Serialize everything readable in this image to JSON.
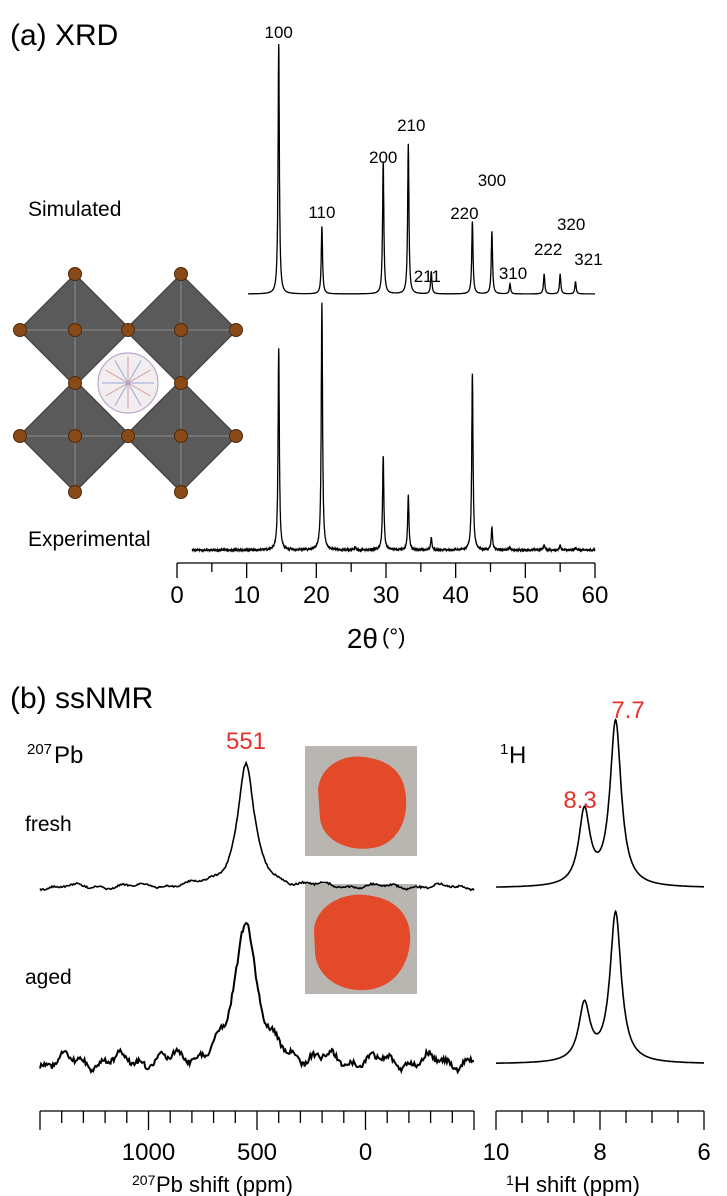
{
  "colors": {
    "trace": "#000000",
    "highlight": "#e8312a",
    "octahedron": "#5a5a5a",
    "atom": "#8a4a17",
    "powder": "#e24a2a",
    "powder_bg": "#b9b6b2"
  },
  "panel_a": {
    "label": "(a) XRD",
    "xlabel_main": "2θ",
    "xlabel_unit": "(°)",
    "xticks": [
      "0",
      "10",
      "20",
      "30",
      "40",
      "50",
      "60"
    ],
    "traces": [
      "Simulated",
      "Experimental"
    ],
    "illustration": "perovskite-octahedra-icon"
  },
  "panel_b": {
    "label": "(b) ssNMR",
    "pb_nucleus_sup": "207",
    "pb_nucleus": "Pb",
    "h_nucleus_sup": "1",
    "h_nucleus": "H",
    "samples": [
      "fresh",
      "aged"
    ],
    "pb_xticks": [
      "1000",
      "500",
      "0"
    ],
    "h_xticks": [
      "10",
      "8",
      "6"
    ],
    "pb_xlabel_sup": "207",
    "pb_xlabel": "Pb shift (ppm)",
    "h_xlabel_sup": "1",
    "h_xlabel": "H shift (ppm)",
    "pb_peak_label": "551",
    "h_peak_labels": [
      "8.3",
      "7.7"
    ]
  },
  "chart_data": [
    {
      "type": "line",
      "title": "(a) XRD",
      "xlabel": "2θ(°)",
      "xlim": [
        0,
        60
      ],
      "series": [
        {
          "name": "Simulated",
          "peaks": [
            {
              "hkl": "100",
              "x": 14.6,
              "y": 1.0
            },
            {
              "hkl": "110",
              "x": 20.8,
              "y": 0.27
            },
            {
              "hkl": "200",
              "x": 29.6,
              "y": 0.53
            },
            {
              "hkl": "210",
              "x": 33.2,
              "y": 0.6
            },
            {
              "hkl": "211",
              "x": 36.5,
              "y": 0.09
            },
            {
              "hkl": "220",
              "x": 42.4,
              "y": 0.29
            },
            {
              "hkl": "300",
              "x": 45.2,
              "y": 0.25
            },
            {
              "hkl": "310",
              "x": 47.8,
              "y": 0.04
            },
            {
              "hkl": "222",
              "x": 52.7,
              "y": 0.08
            },
            {
              "hkl": "320",
              "x": 55.0,
              "y": 0.08
            },
            {
              "hkl": "321",
              "x": 57.2,
              "y": 0.05
            }
          ]
        },
        {
          "name": "Experimental",
          "peaks": [
            {
              "x": 14.6,
              "y": 0.81
            },
            {
              "x": 20.8,
              "y": 1.0
            },
            {
              "x": 25.6,
              "y": 0.01
            },
            {
              "x": 29.6,
              "y": 0.38
            },
            {
              "x": 33.2,
              "y": 0.22
            },
            {
              "x": 36.5,
              "y": 0.05
            },
            {
              "x": 42.4,
              "y": 0.71
            },
            {
              "x": 45.2,
              "y": 0.09
            },
            {
              "x": 47.8,
              "y": 0.01
            },
            {
              "x": 52.7,
              "y": 0.02
            },
            {
              "x": 55.0,
              "y": 0.02
            },
            {
              "x": 57.2,
              "y": 0.01
            }
          ]
        }
      ]
    },
    {
      "type": "line",
      "title": "(b) ssNMR",
      "xlabel": "207Pb shift (ppm)",
      "xlim": [
        1500,
        -500
      ],
      "series": [
        {
          "name": "fresh",
          "peak_x": 551,
          "peak_height": 1.0,
          "width": 45
        },
        {
          "name": "aged",
          "peak_x": 551,
          "peak_height": 1.0,
          "width": 55
        }
      ]
    },
    {
      "type": "line",
      "xlabel": "1H shift (ppm)",
      "xlim": [
        10,
        6
      ],
      "series": [
        {
          "name": "fresh",
          "peaks": [
            {
              "x": 8.3,
              "y": 0.45
            },
            {
              "x": 7.7,
              "y": 1.0
            }
          ]
        },
        {
          "name": "aged",
          "peaks": [
            {
              "x": 8.3,
              "y": 0.38
            },
            {
              "x": 7.7,
              "y": 1.0
            }
          ]
        }
      ]
    }
  ]
}
